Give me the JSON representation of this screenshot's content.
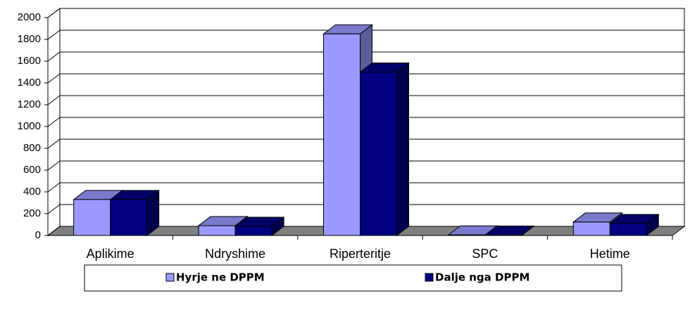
{
  "chart_data": {
    "type": "bar3d",
    "categories": [
      "Aplikime",
      "Ndryshime",
      "Riperteritje",
      "SPC",
      "Hetime"
    ],
    "series": [
      {
        "name": "Hyrje ne DPPM",
        "color": "#9999ff",
        "values": [
          330,
          90,
          1850,
          5,
          123
        ]
      },
      {
        "name": "Dalje nga DPPM",
        "color": "#000080",
        "values": [
          330,
          84,
          1500,
          3,
          110
        ]
      }
    ],
    "ylim": [
      0,
      2000
    ],
    "yticks": [
      0,
      200,
      400,
      600,
      800,
      1000,
      1200,
      1400,
      1600,
      1800,
      2000
    ],
    "grid": true,
    "legend": "bottom"
  }
}
